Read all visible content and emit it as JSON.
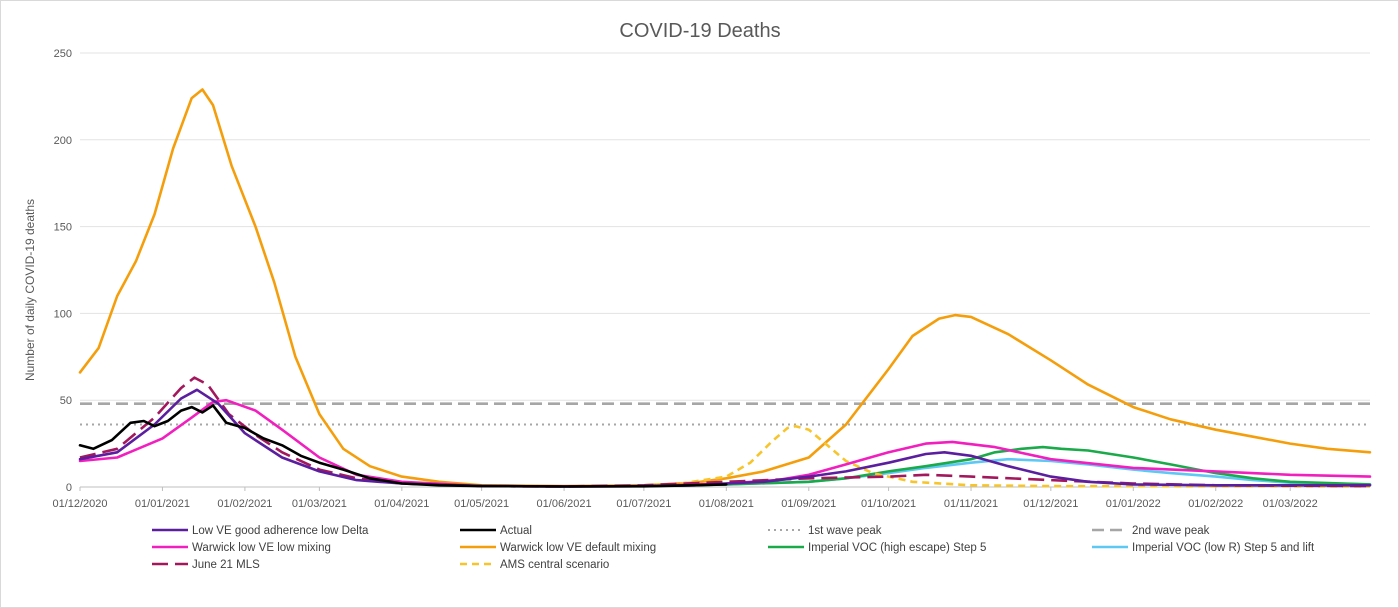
{
  "chart_data": {
    "type": "line",
    "title": "COVID-19 Deaths",
    "xlabel": "",
    "ylabel": "Number of daily COVID-19 deaths",
    "ylim": [
      0,
      250
    ],
    "yticks": [
      0,
      50,
      100,
      150,
      200,
      250
    ],
    "xlim": [
      "2020-12-01",
      "2022-03-31"
    ],
    "xticks": [
      "01/12/2020",
      "01/01/2021",
      "01/02/2021",
      "01/03/2021",
      "01/04/2021",
      "01/05/2021",
      "01/06/2021",
      "01/07/2021",
      "01/08/2021",
      "01/09/2021",
      "01/10/2021",
      "01/11/2021",
      "01/12/2021",
      "01/01/2022",
      "01/02/2022",
      "01/03/2022"
    ],
    "grid": "horizontal",
    "legend_position": "bottom",
    "series": [
      {
        "name": "Low VE good adherence low Delta",
        "color": "#5b1e9e",
        "dash": "solid",
        "points": [
          [
            "2020-12-01",
            16
          ],
          [
            "2020-12-15",
            20
          ],
          [
            "2020-12-29",
            36
          ],
          [
            "2021-01-08",
            51
          ],
          [
            "2021-01-14",
            56
          ],
          [
            "2021-01-22",
            48
          ],
          [
            "2021-02-01",
            31
          ],
          [
            "2021-02-15",
            17
          ],
          [
            "2021-03-01",
            9
          ],
          [
            "2021-03-15",
            4
          ],
          [
            "2021-04-01",
            2
          ],
          [
            "2021-05-01",
            0.5
          ],
          [
            "2021-06-01",
            0.3
          ],
          [
            "2021-07-01",
            0.5
          ],
          [
            "2021-07-20",
            1
          ],
          [
            "2021-08-01",
            2
          ],
          [
            "2021-08-15",
            3
          ],
          [
            "2021-09-01",
            6
          ],
          [
            "2021-09-15",
            9
          ],
          [
            "2021-10-01",
            14
          ],
          [
            "2021-10-15",
            19
          ],
          [
            "2021-10-22",
            20
          ],
          [
            "2021-11-01",
            18
          ],
          [
            "2021-11-15",
            12
          ],
          [
            "2021-12-01",
            6
          ],
          [
            "2021-12-15",
            3
          ],
          [
            "2022-01-01",
            1.5
          ],
          [
            "2022-02-01",
            1
          ],
          [
            "2022-03-31",
            1
          ]
        ]
      },
      {
        "name": "Actual",
        "color": "#000000",
        "dash": "solid",
        "points": [
          [
            "2020-12-01",
            24
          ],
          [
            "2020-12-06",
            22
          ],
          [
            "2020-12-13",
            27
          ],
          [
            "2020-12-20",
            37
          ],
          [
            "2020-12-25",
            38
          ],
          [
            "2020-12-29",
            35
          ],
          [
            "2021-01-03",
            38
          ],
          [
            "2021-01-08",
            44
          ],
          [
            "2021-01-12",
            46
          ],
          [
            "2021-01-16",
            43
          ],
          [
            "2021-01-20",
            47
          ],
          [
            "2021-01-25",
            37
          ],
          [
            "2021-02-01",
            34
          ],
          [
            "2021-02-08",
            28
          ],
          [
            "2021-02-15",
            24
          ],
          [
            "2021-02-22",
            18
          ],
          [
            "2021-03-01",
            14
          ],
          [
            "2021-03-10",
            10
          ],
          [
            "2021-03-20",
            5
          ],
          [
            "2021-04-01",
            2
          ],
          [
            "2021-04-15",
            1
          ],
          [
            "2021-05-01",
            0.5
          ],
          [
            "2021-06-01",
            0.3
          ],
          [
            "2021-07-01",
            0.4
          ],
          [
            "2021-07-15",
            0.8
          ],
          [
            "2021-08-01",
            1.5
          ]
        ]
      },
      {
        "name": "1st wave peak",
        "color": "#a6a6a6",
        "dash": "dot",
        "points": [
          [
            "2020-12-01",
            36
          ],
          [
            "2022-03-31",
            36
          ]
        ]
      },
      {
        "name": "2nd wave peak",
        "color": "#a6a6a6",
        "dash": "dash",
        "points": [
          [
            "2020-12-01",
            48
          ],
          [
            "2022-03-31",
            48
          ]
        ]
      },
      {
        "name": "Warwick low VE low mixing",
        "color": "#f21fbf",
        "dash": "solid",
        "points": [
          [
            "2020-12-01",
            15
          ],
          [
            "2020-12-15",
            17
          ],
          [
            "2021-01-01",
            28
          ],
          [
            "2021-01-12",
            40
          ],
          [
            "2021-01-20",
            49
          ],
          [
            "2021-01-25",
            50
          ],
          [
            "2021-02-05",
            44
          ],
          [
            "2021-02-15",
            33
          ],
          [
            "2021-03-01",
            17
          ],
          [
            "2021-03-15",
            7
          ],
          [
            "2021-04-01",
            3
          ],
          [
            "2021-05-01",
            0.5
          ],
          [
            "2021-06-01",
            0.3
          ],
          [
            "2021-07-01",
            0.5
          ],
          [
            "2021-08-01",
            2
          ],
          [
            "2021-08-20",
            4
          ],
          [
            "2021-09-01",
            7
          ],
          [
            "2021-09-15",
            13
          ],
          [
            "2021-10-01",
            20
          ],
          [
            "2021-10-15",
            25
          ],
          [
            "2021-10-25",
            26
          ],
          [
            "2021-11-10",
            23
          ],
          [
            "2021-12-01",
            16
          ],
          [
            "2022-01-01",
            11
          ],
          [
            "2022-02-01",
            9
          ],
          [
            "2022-03-01",
            7
          ],
          [
            "2022-03-31",
            6
          ]
        ]
      },
      {
        "name": "Warwick low VE default mixing",
        "color": "#f59e0b",
        "dash": "solid",
        "points": [
          [
            "2020-12-01",
            66
          ],
          [
            "2020-12-08",
            80
          ],
          [
            "2020-12-15",
            110
          ],
          [
            "2020-12-22",
            130
          ],
          [
            "2020-12-29",
            157
          ],
          [
            "2021-01-05",
            195
          ],
          [
            "2021-01-12",
            224
          ],
          [
            "2021-01-16",
            229
          ],
          [
            "2021-01-20",
            220
          ],
          [
            "2021-01-27",
            185
          ],
          [
            "2021-02-05",
            150
          ],
          [
            "2021-02-12",
            118
          ],
          [
            "2021-02-20",
            75
          ],
          [
            "2021-03-01",
            42
          ],
          [
            "2021-03-10",
            22
          ],
          [
            "2021-03-20",
            12
          ],
          [
            "2021-04-01",
            6
          ],
          [
            "2021-04-15",
            3
          ],
          [
            "2021-05-01",
            1
          ],
          [
            "2021-06-01",
            0.5
          ],
          [
            "2021-07-01",
            1
          ],
          [
            "2021-07-20",
            2.5
          ],
          [
            "2021-08-01",
            5
          ],
          [
            "2021-08-15",
            9
          ],
          [
            "2021-09-01",
            17
          ],
          [
            "2021-09-15",
            36
          ],
          [
            "2021-10-01",
            68
          ],
          [
            "2021-10-10",
            87
          ],
          [
            "2021-10-20",
            97
          ],
          [
            "2021-10-26",
            99
          ],
          [
            "2021-11-01",
            98
          ],
          [
            "2021-11-15",
            88
          ],
          [
            "2021-12-01",
            73
          ],
          [
            "2021-12-15",
            59
          ],
          [
            "2022-01-01",
            46
          ],
          [
            "2022-01-15",
            39
          ],
          [
            "2022-02-01",
            33
          ],
          [
            "2022-02-15",
            29
          ],
          [
            "2022-03-01",
            25
          ],
          [
            "2022-03-15",
            22
          ],
          [
            "2022-03-31",
            20
          ]
        ]
      },
      {
        "name": "Imperial VOC (high escape) Step 5",
        "color": "#1aaa4a",
        "dash": "solid",
        "points": [
          [
            "2021-07-01",
            0.5
          ],
          [
            "2021-08-01",
            1.5
          ],
          [
            "2021-09-01",
            3
          ],
          [
            "2021-09-15",
            5
          ],
          [
            "2021-10-01",
            9
          ],
          [
            "2021-10-15",
            12
          ],
          [
            "2021-11-01",
            16
          ],
          [
            "2021-11-10",
            20
          ],
          [
            "2021-11-20",
            22
          ],
          [
            "2021-11-28",
            23
          ],
          [
            "2021-12-05",
            22
          ],
          [
            "2021-12-15",
            21
          ],
          [
            "2022-01-01",
            17
          ],
          [
            "2022-01-15",
            13
          ],
          [
            "2022-02-01",
            8
          ],
          [
            "2022-02-15",
            5
          ],
          [
            "2022-03-01",
            3
          ],
          [
            "2022-03-31",
            1.5
          ]
        ]
      },
      {
        "name": "Imperial VOC (low R) Step 5 and lift",
        "color": "#5ec8f5",
        "dash": "solid",
        "points": [
          [
            "2021-07-01",
            0.5
          ],
          [
            "2021-08-01",
            1.5
          ],
          [
            "2021-09-01",
            3
          ],
          [
            "2021-09-15",
            5
          ],
          [
            "2021-10-01",
            8
          ],
          [
            "2021-10-15",
            11
          ],
          [
            "2021-11-01",
            14
          ],
          [
            "2021-11-15",
            16
          ],
          [
            "2021-12-01",
            15
          ],
          [
            "2021-12-15",
            13
          ],
          [
            "2022-01-01",
            10
          ],
          [
            "2022-01-15",
            8
          ],
          [
            "2022-02-01",
            6
          ],
          [
            "2022-02-15",
            4
          ],
          [
            "2022-03-01",
            2.5
          ],
          [
            "2022-03-31",
            1.5
          ]
        ]
      },
      {
        "name": "June 21 MLS",
        "color": "#a3185d",
        "dash": "longdash",
        "points": [
          [
            "2020-12-01",
            17
          ],
          [
            "2020-12-15",
            22
          ],
          [
            "2020-12-29",
            40
          ],
          [
            "2021-01-08",
            57
          ],
          [
            "2021-01-13",
            63
          ],
          [
            "2021-01-18",
            59
          ],
          [
            "2021-01-26",
            42
          ],
          [
            "2021-02-05",
            30
          ],
          [
            "2021-02-15",
            20
          ],
          [
            "2021-03-01",
            10
          ],
          [
            "2021-03-15",
            5
          ],
          [
            "2021-04-01",
            2
          ],
          [
            "2021-05-01",
            0.5
          ],
          [
            "2021-06-01",
            0.3
          ],
          [
            "2021-07-01",
            1
          ],
          [
            "2021-08-01",
            3
          ],
          [
            "2021-09-01",
            5
          ],
          [
            "2021-10-01",
            6
          ],
          [
            "2021-10-15",
            7
          ],
          [
            "2021-11-01",
            6
          ],
          [
            "2021-12-01",
            4
          ],
          [
            "2022-01-01",
            2
          ],
          [
            "2022-02-01",
            1
          ],
          [
            "2022-03-31",
            0.5
          ]
        ]
      },
      {
        "name": "AMS central scenario",
        "color": "#f7c52b",
        "dash": "shortdash",
        "points": [
          [
            "2021-07-01",
            1
          ],
          [
            "2021-07-15",
            2
          ],
          [
            "2021-08-01",
            6
          ],
          [
            "2021-08-10",
            14
          ],
          [
            "2021-08-18",
            26
          ],
          [
            "2021-08-24",
            34
          ],
          [
            "2021-08-27",
            35
          ],
          [
            "2021-09-01",
            33
          ],
          [
            "2021-09-08",
            24
          ],
          [
            "2021-09-15",
            15
          ],
          [
            "2021-09-25",
            8
          ],
          [
            "2021-10-10",
            3
          ],
          [
            "2021-11-01",
            1
          ],
          [
            "2021-12-01",
            0.5
          ],
          [
            "2022-03-31",
            0.3
          ]
        ]
      }
    ]
  }
}
